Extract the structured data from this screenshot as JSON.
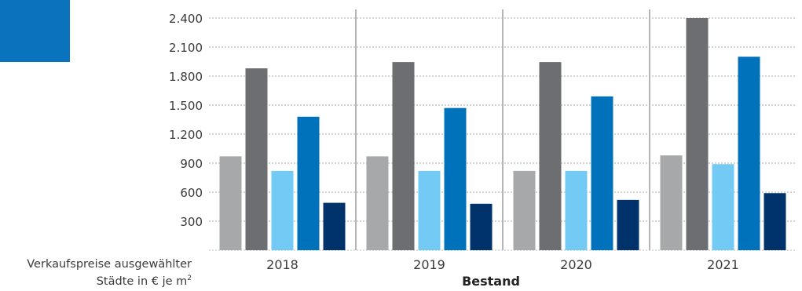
{
  "chart_data": {
    "type": "bar",
    "categories": [
      "2018",
      "2019",
      "2020",
      "2021"
    ],
    "series": [
      {
        "color": "#a7a8aa",
        "values": [
          970,
          970,
          820,
          980
        ]
      },
      {
        "color": "#6d6e71",
        "values": [
          1880,
          1945,
          1945,
          2400
        ]
      },
      {
        "color": "#73cbf5",
        "values": [
          820,
          820,
          820,
          890
        ]
      },
      {
        "color": "#0072bc",
        "values": [
          1380,
          1470,
          1590,
          2000
        ]
      },
      {
        "color": "#00336b",
        "values": [
          490,
          480,
          520,
          590
        ]
      }
    ],
    "y_ticks": [
      "300",
      "600",
      "900",
      "1.200",
      "1.500",
      "1.800",
      "2.100",
      "2.400"
    ],
    "y_tick_values": [
      300,
      600,
      900,
      1200,
      1500,
      1800,
      2100,
      2400
    ],
    "ylim": [
      0,
      2400
    ],
    "xlabel": "Bestand",
    "ylabel_line1": "Verkaufspreise ausgewählter",
    "ylabel_line2": "Städte in € je m",
    "ylabel_superscript": "2",
    "grid": true,
    "gridline_style": "dotted",
    "group_separators": true
  },
  "colors": {
    "accent_block": "#0a73be",
    "gridline": "#a9a9a9",
    "separator": "#b5b5b5",
    "baseline": "#bdbdbd"
  }
}
